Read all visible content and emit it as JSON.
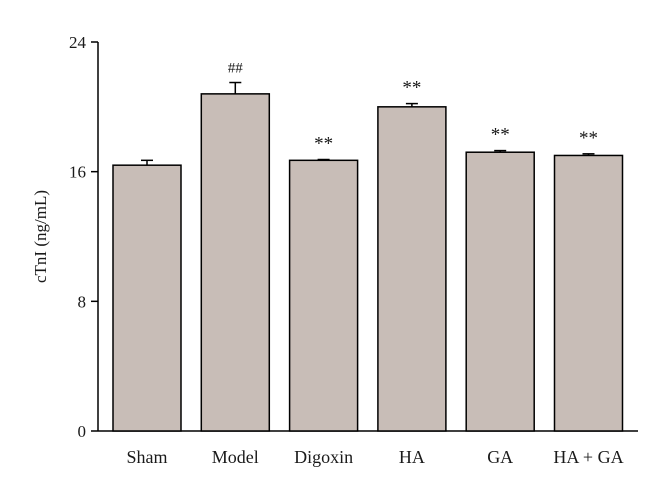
{
  "chart_data": {
    "type": "bar",
    "title": "",
    "xlabel": "",
    "ylabel": "cTnI (ng/mL)",
    "categories": [
      "Sham",
      "Model",
      "Digoxin",
      "HA",
      "GA",
      "HA + GA"
    ],
    "values": [
      16.4,
      20.8,
      16.7,
      20.0,
      17.2,
      17.0
    ],
    "error": [
      0.3,
      0.7,
      0.05,
      0.2,
      0.1,
      0.1
    ],
    "annotations": [
      "",
      "##",
      "**",
      "**",
      "**",
      "**"
    ],
    "ylim": [
      0,
      24
    ],
    "yticks": [
      "0",
      "8",
      "16",
      "24"
    ],
    "grid": false,
    "bar_color": "#c8bdb7",
    "edge_color": "#000000"
  }
}
